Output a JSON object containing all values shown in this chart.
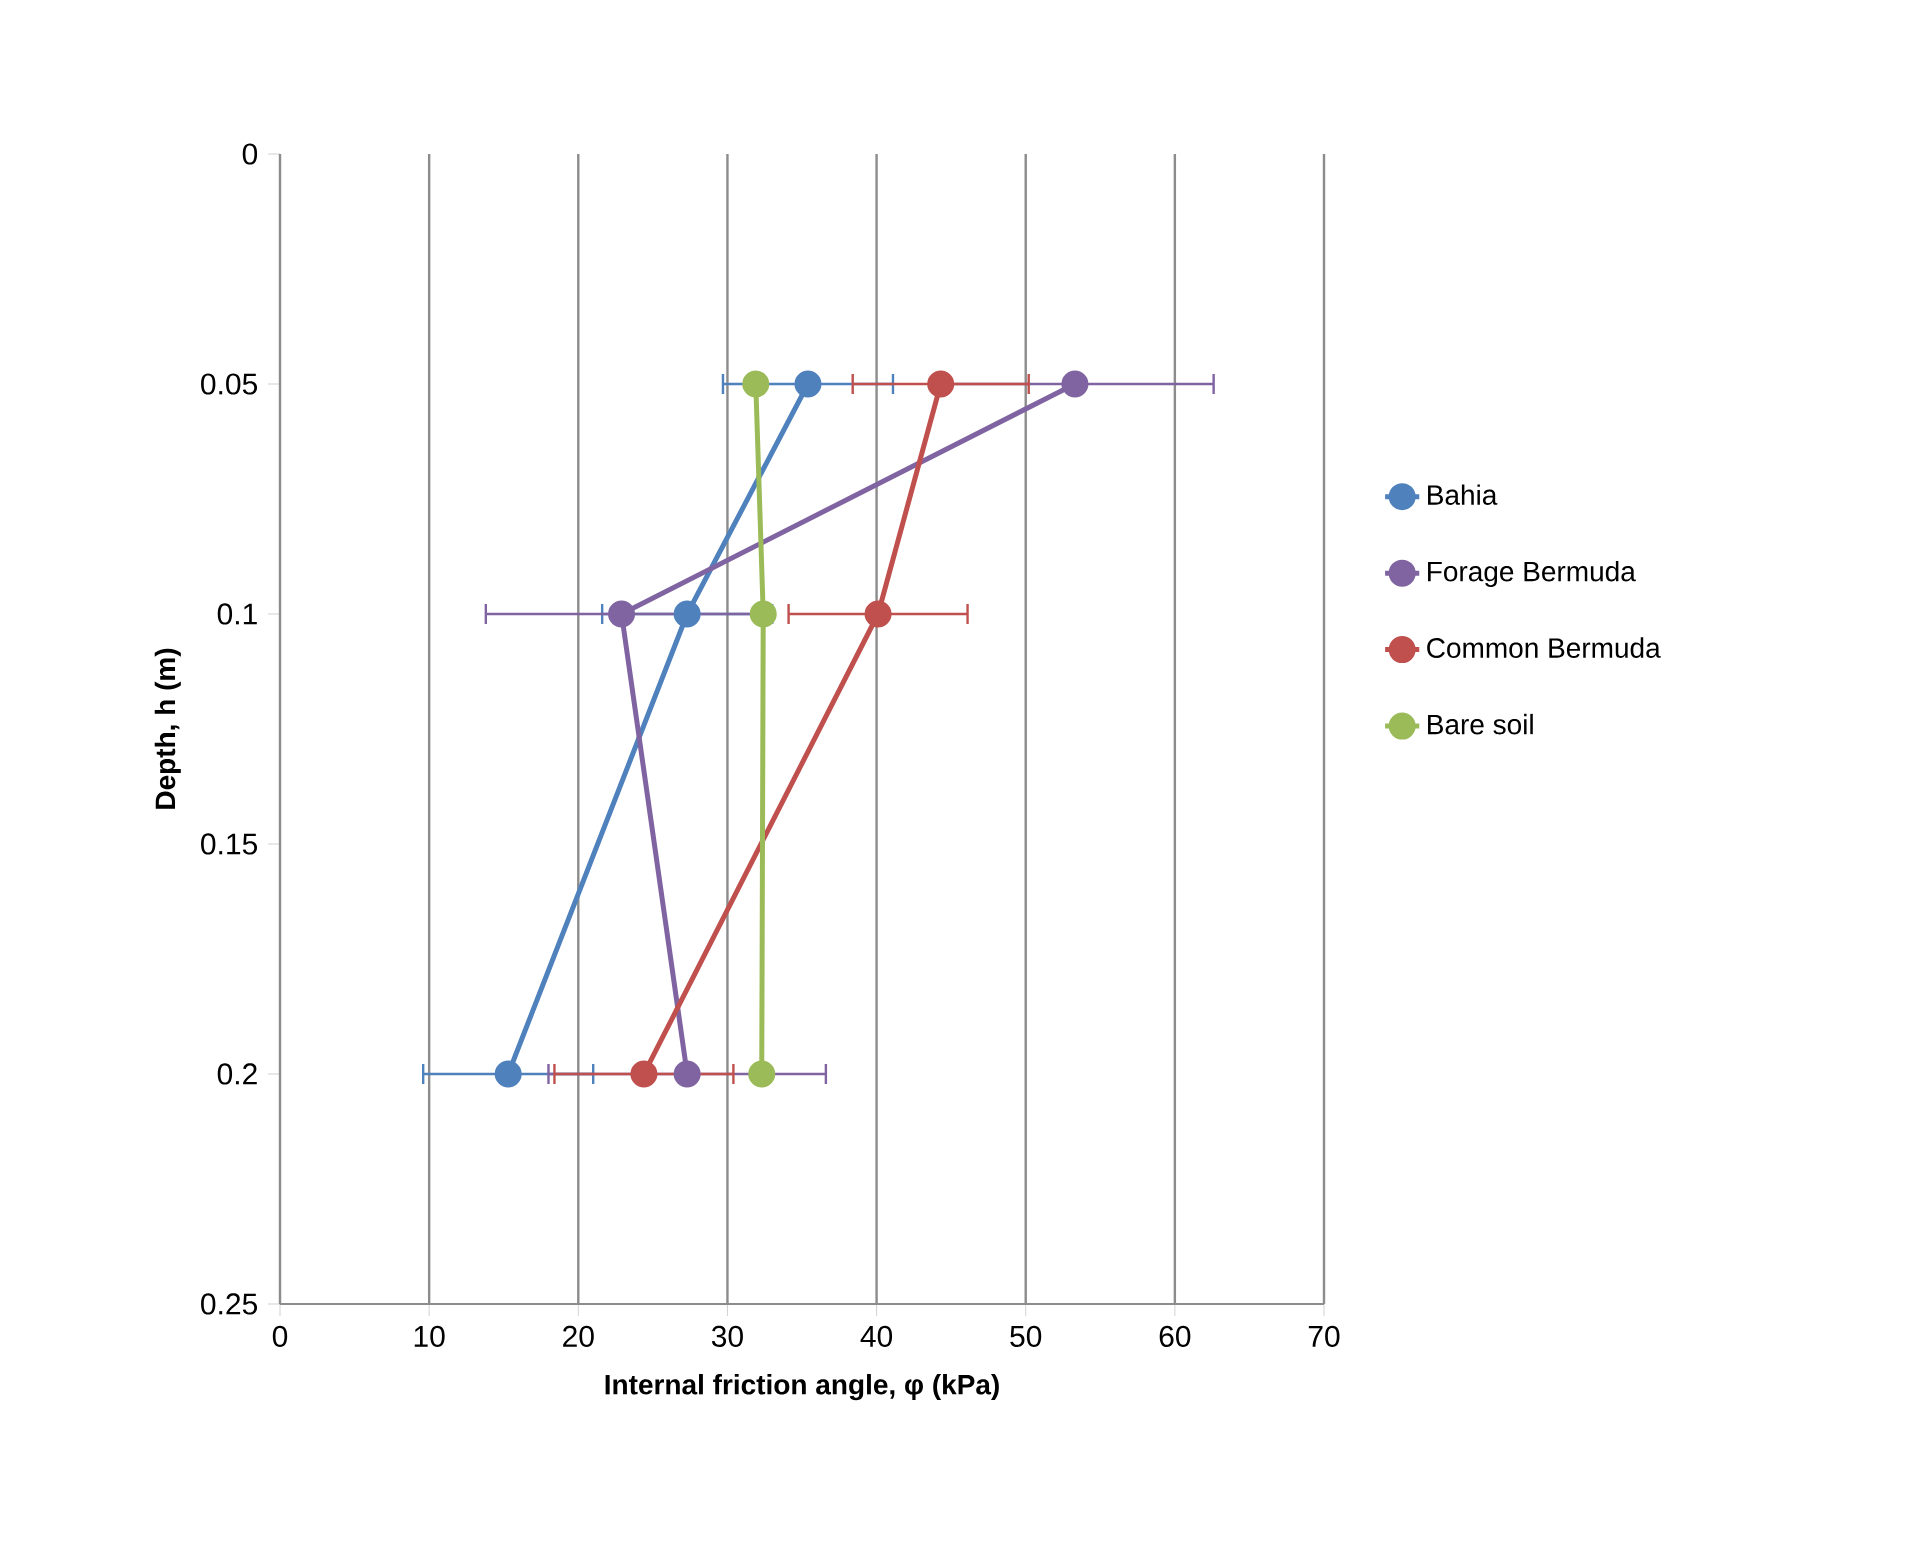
{
  "chart_data": {
    "type": "line",
    "xlabel": "Internal friction angle, φ (kPa)",
    "ylabel": "Depth, h (m)",
    "xlim": [
      0,
      70
    ],
    "xticks": [
      0,
      10,
      20,
      30,
      40,
      50,
      60,
      70
    ],
    "ylim": [
      0.25,
      0
    ],
    "yticks": [
      0,
      0.05,
      0.1,
      0.15,
      0.2,
      0.25
    ],
    "grid": "x",
    "legend": "right",
    "marker": "circle",
    "line_style": "solid",
    "series": [
      {
        "name": "Bahia",
        "color": "#4f81bd",
        "x": [
          35.4,
          27.3,
          15.3
        ],
        "values": [
          0.05,
          0.1,
          0.2
        ],
        "xerrors": [
          5.7,
          5.7,
          5.7
        ]
      },
      {
        "name": "Forage Bermuda",
        "color": "#8064a2",
        "x": [
          53.3,
          22.9,
          27.3
        ],
        "values": [
          0.05,
          0.1,
          0.2
        ],
        "xerrors": [
          9.3,
          9.1,
          9.3
        ]
      },
      {
        "name": "Common Bermuda",
        "color": "#c0504d",
        "x": [
          44.3,
          40.1,
          24.4
        ],
        "values": [
          0.05,
          0.1,
          0.2
        ],
        "xerrors": [
          5.9,
          6.0,
          6.0
        ]
      },
      {
        "name": "Bare soil",
        "color": "#9bbb59",
        "x": [
          31.9,
          32.4,
          32.3
        ],
        "values": [
          0.05,
          0.1,
          0.2
        ],
        "xerrors": [
          null,
          null,
          null
        ]
      }
    ]
  }
}
